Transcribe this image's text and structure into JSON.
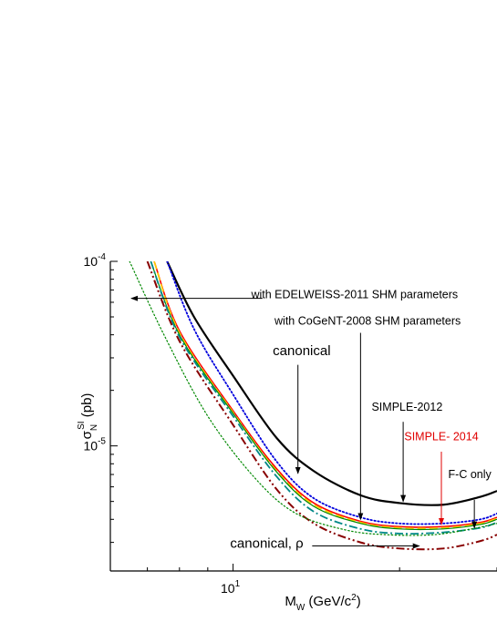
{
  "chart_data": {
    "type": "line",
    "xlabel": {
      "base": "M",
      "sub": "W",
      "unit": " (GeV/c",
      "sup": "2",
      "close": ")"
    },
    "ylabel": {
      "base": "σ",
      "sub": "N",
      "sup": "SI",
      "unit": " (pb)"
    },
    "x_scale": "log",
    "y_scale": "log",
    "xlim": [
      6.0,
      30.0
    ],
    "ylim": [
      2.1e-06,
      0.0001
    ],
    "x_ticks": [
      {
        "base": "10",
        "exp": "1",
        "value": 10
      }
    ],
    "y_ticks": [
      {
        "base": "10",
        "exp": "-4",
        "value": 0.0001
      },
      {
        "base": "10",
        "exp": "-5",
        "value": 1e-05
      }
    ],
    "series": [
      {
        "color": "#000000",
        "style": "solid",
        "width": 2.2,
        "x": [
          7.6,
          8.5,
          10,
          12,
          14,
          17,
          20,
          24,
          28,
          30
        ],
        "y": [
          0.0001,
          5e-05,
          2.4e-05,
          1.1e-05,
          7.3e-06,
          5.4e-06,
          4.9e-06,
          4.8e-06,
          5.3e-06,
          5.7e-06
        ]
      },
      {
        "color": "#0000dd",
        "style": "dotted",
        "width": 1.8,
        "x": [
          7.6,
          8.5,
          10,
          12,
          14,
          17,
          20,
          24,
          28,
          30
        ],
        "y": [
          0.0001,
          4.3e-05,
          1.9e-05,
          8.2e-06,
          5.2e-06,
          4.1e-06,
          3.8e-06,
          3.8e-06,
          4e-06,
          4.3e-06
        ]
      },
      {
        "color": "#ff0000",
        "style": "solid",
        "width": 1.6,
        "x": [
          7.2,
          8,
          10,
          12,
          14,
          17,
          20,
          24,
          28,
          30
        ],
        "y": [
          0.0001,
          4.2e-05,
          1.55e-05,
          7.5e-06,
          4.9e-06,
          3.9e-06,
          3.65e-06,
          3.65e-06,
          3.85e-06,
          4.1e-06
        ]
      },
      {
        "color": "#ffcc00",
        "style": "dashed",
        "width": 1.6,
        "x": [
          7.2,
          8,
          10,
          12,
          14,
          17,
          20,
          24,
          28,
          30
        ],
        "y": [
          0.0001,
          4.1e-05,
          1.52e-05,
          7.3e-06,
          4.8e-06,
          3.85e-06,
          3.6e-06,
          3.6e-06,
          3.8e-06,
          4.05e-06
        ]
      },
      {
        "color": "#008800",
        "style": "solid",
        "width": 1.2,
        "x": [
          7.1,
          8,
          10,
          12,
          14,
          17,
          20,
          24,
          28,
          30
        ],
        "y": [
          0.0001,
          4e-05,
          1.5e-05,
          7.2e-06,
          4.7e-06,
          3.8e-06,
          3.55e-06,
          3.55e-06,
          3.75e-06,
          4e-06
        ]
      },
      {
        "color": "#008888",
        "style": "dashdot",
        "width": 1.8,
        "x": [
          7.1,
          8,
          10,
          12,
          14,
          17,
          20,
          24,
          28,
          30
        ],
        "y": [
          0.0001,
          3.9e-05,
          1.45e-05,
          6.8e-06,
          4.4e-06,
          3.55e-06,
          3.35e-06,
          3.4e-06,
          3.6e-06,
          3.85e-06
        ]
      },
      {
        "color": "#880000",
        "style": "dashdotdot",
        "width": 2.0,
        "x": [
          7.0,
          8,
          10,
          12,
          14,
          17,
          20,
          24,
          28,
          30
        ],
        "y": [
          0.0001,
          3.7e-05,
          1.3e-05,
          5.8e-06,
          3.8e-06,
          3e-06,
          2.78e-06,
          2.78e-06,
          3.05e-06,
          3.3e-06
        ]
      },
      {
        "color": "#008800",
        "style": "dotted",
        "width": 1.2,
        "x": [
          6.5,
          7.5,
          9,
          11,
          13,
          16,
          19,
          23,
          27,
          30
        ],
        "y": [
          0.0001,
          4e-05,
          1.45e-05,
          6.6e-06,
          4.3e-06,
          3.5e-06,
          3.3e-06,
          3.3e-06,
          3.55e-06,
          3.8e-06
        ]
      }
    ],
    "annotations": [
      {
        "text": "with EDELWEISS-2011 SHM parameters",
        "color": "#000000",
        "tx": 25.5,
        "ty": 6.3e-05,
        "anchor": "end",
        "ax": 11.3,
        "ay": 6.3e-05,
        "hx": 6.55,
        "hy": 6.3e-05
      },
      {
        "text": "with CoGeNT-2008 SHM parameters",
        "color": "#000000",
        "tx": 25.8,
        "ty": 4.55e-05,
        "anchor": "end"
      },
      {
        "text": "canonical",
        "color": "#000000",
        "tx": 11.8,
        "ty": 3.1e-05,
        "anchor": "start",
        "ax": 13.1,
        "ay": 2.75e-05,
        "hx": 13.1,
        "hy": 7.1e-06
      },
      {
        "text": "",
        "color": "#000000",
        "ax": 17.0,
        "ay": 4.1e-05,
        "hx": 17.0,
        "hy": 4e-06
      },
      {
        "text": "SIMPLE-2012",
        "color": "#000000",
        "tx": 17.8,
        "ty": 1.55e-05,
        "anchor": "start",
        "ax": 20.3,
        "ay": 1.35e-05,
        "hx": 20.3,
        "hy": 5e-06
      },
      {
        "text": "SIMPLE- 2014",
        "color": "#e00000",
        "tx": 23.8,
        "ty": 1.07e-05,
        "anchor": "middle",
        "ax": 23.8,
        "ay": 9.3e-06,
        "hx": 23.8,
        "hy": 3.75e-06
      },
      {
        "text": "F-C only",
        "color": "#000000",
        "tx": 29.3,
        "ty": 6.7e-06,
        "anchor": "end",
        "ax": 27.3,
        "ay": 5.1e-06,
        "hx": 27.3,
        "hy": 3.6e-06
      },
      {
        "text": "canonical, ρ",
        "color": "#000000",
        "tx": 13.4,
        "ty": 2.8e-06,
        "anchor": "end",
        "ax": 13.9,
        "ay": 2.87e-06,
        "hx": 21.7,
        "hy": 2.87e-06
      }
    ]
  }
}
